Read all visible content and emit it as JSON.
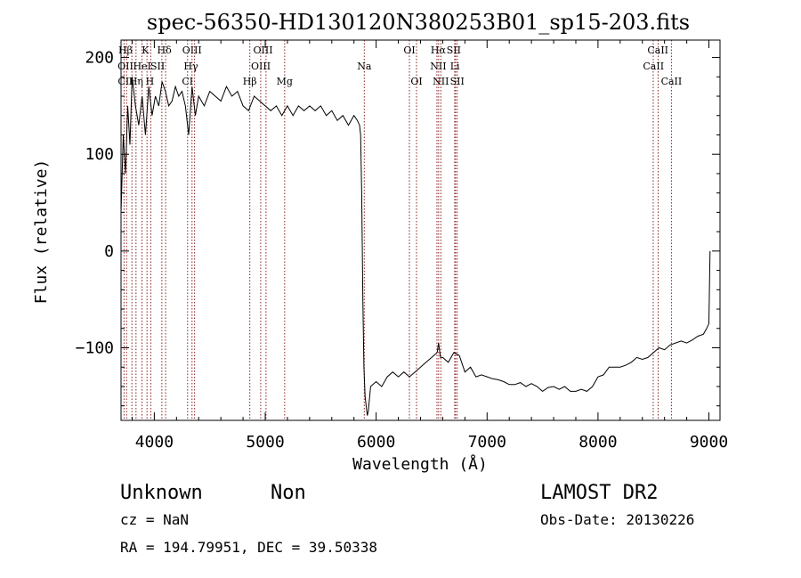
{
  "chart_data": {
    "type": "line",
    "title": "spec-56350-HD130120N380253B01_sp15-203.fits",
    "xlabel": "Wavelength (Å)",
    "ylabel": "Flux (relative)",
    "xlim": [
      3700,
      9100
    ],
    "ylim": [
      -175,
      218
    ],
    "x_ticks": [
      4000,
      5000,
      6000,
      7000,
      8000,
      9000
    ],
    "x_tick_labels": [
      "4000",
      "5000",
      "6000",
      "7000",
      "8000",
      "9000"
    ],
    "y_ticks": [
      -100,
      0,
      100,
      200
    ],
    "y_tick_labels": [
      "−100",
      "0",
      "100",
      "200"
    ],
    "grid": false,
    "series": [
      {
        "color": "#000000",
        "x": [
          3700,
          3720,
          3740,
          3760,
          3780,
          3800,
          3830,
          3860,
          3890,
          3920,
          3950,
          3980,
          4010,
          4040,
          4070,
          4100,
          4130,
          4160,
          4190,
          4220,
          4250,
          4280,
          4310,
          4340,
          4370,
          4400,
          4450,
          4500,
          4550,
          4600,
          4650,
          4700,
          4750,
          4800,
          4850,
          4900,
          4950,
          5000,
          5050,
          5100,
          5150,
          5200,
          5250,
          5300,
          5350,
          5400,
          5450,
          5500,
          5550,
          5600,
          5650,
          5700,
          5750,
          5800,
          5830,
          5850,
          5860,
          5870,
          5880,
          5890,
          5900,
          5910,
          5920,
          5930,
          5950,
          6000,
          6050,
          6100,
          6150,
          6200,
          6250,
          6300,
          6350,
          6400,
          6450,
          6500,
          6550,
          6563,
          6580,
          6600,
          6650,
          6700,
          6750,
          6800,
          6850,
          6900,
          6950,
          7000,
          7050,
          7100,
          7150,
          7200,
          7250,
          7300,
          7350,
          7400,
          7450,
          7500,
          7550,
          7600,
          7650,
          7700,
          7750,
          7800,
          7850,
          7900,
          7950,
          8000,
          8050,
          8100,
          8150,
          8200,
          8250,
          8300,
          8350,
          8400,
          8450,
          8500,
          8550,
          8600,
          8650,
          8700,
          8750,
          8800,
          8850,
          8900,
          8950,
          8980,
          9000,
          9010
        ],
        "y": [
          40,
          120,
          80,
          150,
          110,
          180,
          150,
          130,
          160,
          120,
          170,
          140,
          160,
          150,
          175,
          165,
          150,
          155,
          170,
          160,
          165,
          150,
          120,
          170,
          140,
          160,
          150,
          165,
          160,
          155,
          170,
          160,
          165,
          150,
          145,
          160,
          155,
          150,
          145,
          150,
          140,
          150,
          140,
          150,
          145,
          150,
          145,
          150,
          140,
          145,
          135,
          140,
          130,
          140,
          135,
          130,
          120,
          60,
          -50,
          -120,
          -150,
          -160,
          -170,
          -165,
          -140,
          -135,
          -140,
          -130,
          -125,
          -130,
          -125,
          -130,
          -125,
          -120,
          -115,
          -110,
          -105,
          -95,
          -110,
          -110,
          -115,
          -105,
          -108,
          -125,
          -120,
          -130,
          -128,
          -130,
          -132,
          -133,
          -135,
          -138,
          -138,
          -136,
          -140,
          -137,
          -140,
          -145,
          -141,
          -140,
          -143,
          -140,
          -145,
          -145,
          -143,
          -145,
          -140,
          -130,
          -128,
          -120,
          -120,
          -120,
          -118,
          -115,
          -110,
          -112,
          -110,
          -105,
          -100,
          -102,
          -97,
          -95,
          -93,
          -95,
          -92,
          -88,
          -86,
          -80,
          -75,
          0
        ]
      }
    ],
    "line_markers": [
      {
        "w": 3727,
        "color": "#8b2020"
      },
      {
        "w": 3750,
        "color": "#8b2020"
      },
      {
        "w": 3798,
        "color": "#8b2020"
      },
      {
        "w": 3835,
        "color": "#8b2020"
      },
      {
        "w": 3889,
        "color": "#8b2020"
      },
      {
        "w": 3934,
        "color": "#8b2020"
      },
      {
        "w": 3968,
        "color": "#8b2020"
      },
      {
        "w": 4068,
        "color": "#8b2020"
      },
      {
        "w": 4102,
        "color": "#8b2020"
      },
      {
        "w": 4300,
        "color": "#8b2020"
      },
      {
        "w": 4340,
        "color": "#8b2020"
      },
      {
        "w": 4363,
        "color": "#8b2020"
      },
      {
        "w": 4861,
        "color": "#8b2020"
      },
      {
        "w": 4959,
        "color": "#8b2020"
      },
      {
        "w": 5007,
        "color": "#8b2020"
      },
      {
        "w": 5175,
        "color": "#8b2020"
      },
      {
        "w": 5893,
        "color": "#8b2020"
      },
      {
        "w": 6300,
        "color": "#8b2020"
      },
      {
        "w": 6364,
        "color": "#8b2020"
      },
      {
        "w": 6548,
        "color": "#8b2020"
      },
      {
        "w": 6563,
        "color": "#8b2020"
      },
      {
        "w": 6583,
        "color": "#8b2020"
      },
      {
        "w": 6708,
        "color": "#8b2020"
      },
      {
        "w": 6716,
        "color": "#8b2020"
      },
      {
        "w": 6731,
        "color": "#8b2020"
      },
      {
        "w": 8498,
        "color": "#8b2020"
      },
      {
        "w": 8542,
        "color": "#8b2020"
      },
      {
        "w": 8662,
        "color": "#8b2020"
      }
    ],
    "line_labels": [
      {
        "text": "Hβ",
        "w": 3740,
        "row": 1
      },
      {
        "text": "K",
        "w": 3920,
        "row": 1
      },
      {
        "text": "Hδ",
        "w": 4090,
        "row": 1
      },
      {
        "text": "OIII",
        "w": 4340,
        "row": 1
      },
      {
        "text": "OIII",
        "w": 4980,
        "row": 1
      },
      {
        "text": "OI",
        "w": 6300,
        "row": 1
      },
      {
        "text": "Hα",
        "w": 6560,
        "row": 1
      },
      {
        "text": "SII",
        "w": 6700,
        "row": 1
      },
      {
        "text": "CaII",
        "w": 8540,
        "row": 1
      },
      {
        "text": "OII",
        "w": 3740,
        "row": 2
      },
      {
        "text": "HeI",
        "w": 3890,
        "row": 2
      },
      {
        "text": "SII",
        "w": 4030,
        "row": 2
      },
      {
        "text": "Hγ",
        "w": 4330,
        "row": 2
      },
      {
        "text": "OIII",
        "w": 4960,
        "row": 2
      },
      {
        "text": "Na",
        "w": 5893,
        "row": 2
      },
      {
        "text": "NII",
        "w": 6560,
        "row": 2
      },
      {
        "text": "Li",
        "w": 6710,
        "row": 2
      },
      {
        "text": "CaII",
        "w": 8500,
        "row": 2
      },
      {
        "text": "CII",
        "w": 3740,
        "row": 3
      },
      {
        "text": "Hη",
        "w": 3835,
        "row": 3
      },
      {
        "text": "H",
        "w": 3960,
        "row": 3
      },
      {
        "text": "CI",
        "w": 4300,
        "row": 3
      },
      {
        "text": "Hβ",
        "w": 4861,
        "row": 3
      },
      {
        "text": "Mg",
        "w": 5175,
        "row": 3
      },
      {
        "text": "OI",
        "w": 6364,
        "row": 3
      },
      {
        "text": "NII",
        "w": 6583,
        "row": 3
      },
      {
        "text": "SII",
        "w": 6731,
        "row": 3
      },
      {
        "text": "CaII",
        "w": 8662,
        "row": 3
      }
    ]
  },
  "footer": {
    "object_class": "Unknown",
    "object_subclass": "Non",
    "cz": "cz = NaN",
    "coords": "RA = 194.79951, DEC =  39.50338",
    "survey": "LAMOST DR2",
    "obs_date": "Obs-Date: 20130226"
  }
}
